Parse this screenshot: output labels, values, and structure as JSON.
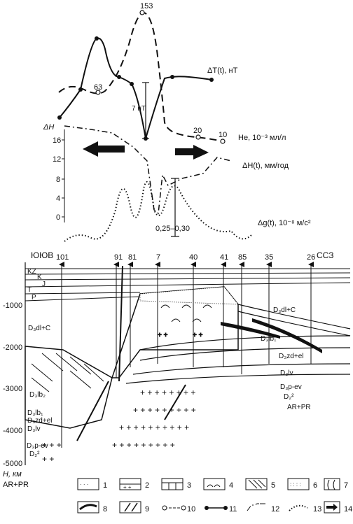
{
  "top_panel": {
    "peak_value": "153",
    "dT_peak_label": "63",
    "dT_amp_label": "7 нТ",
    "he_label_20": "20",
    "he_label_10": "10",
    "dT_legend": "ΔT(t), нТ",
    "he_legend": "He, 10⁻³ мл/л",
    "dH_legend": "ΔH(t), мм/год",
    "dg_legend": "Δg(t), 10⁻⁸ м/с²",
    "dH_axis_title": "ΔH",
    "dH_ticks": [
      "16",
      "12",
      "8",
      "4",
      "0"
    ],
    "dg_amp_label": "0,25–0,30"
  },
  "section": {
    "left_dir": "ЮЮВ",
    "right_dir": "ССЗ",
    "wells": [
      "101",
      "91",
      "81",
      "7",
      "40",
      "41",
      "85",
      "35",
      "26"
    ],
    "strata_left": [
      "KZ",
      "K",
      "J",
      "T",
      "P"
    ],
    "depth_ticks": [
      "-1000",
      "-2000",
      "-3000",
      "-4000",
      "-5000"
    ],
    "depth_axis_label": "H, км",
    "unit_labels": {
      "d3dl_c_left": "D₃dl+C",
      "d3dl_c_right": "D₃dl+C",
      "d3lb2": "D₃lb₂",
      "d3lb1_right": "D₃lb₁",
      "d3zd_el_right": "D₃zd+el",
      "d3lv_right": "D₃lv",
      "d3p_ev_right": "D₃p-ev",
      "d2_right": "D₂²",
      "ar_pr_right": "AR+PR",
      "d3lb1_left": "D₃lb₁",
      "d3zd_el_left": "D₃zd+el",
      "d3lv_left": "D₃lv",
      "d3p_ev_left": "D₃p-ev",
      "d2_left": "D₂²",
      "ar_pr_left": "AR+PR"
    }
  },
  "legend": {
    "items": [
      "1",
      "2",
      "3",
      "4",
      "5",
      "6",
      "7",
      "8",
      "9",
      "10",
      "11",
      "12",
      "13",
      "14"
    ]
  }
}
